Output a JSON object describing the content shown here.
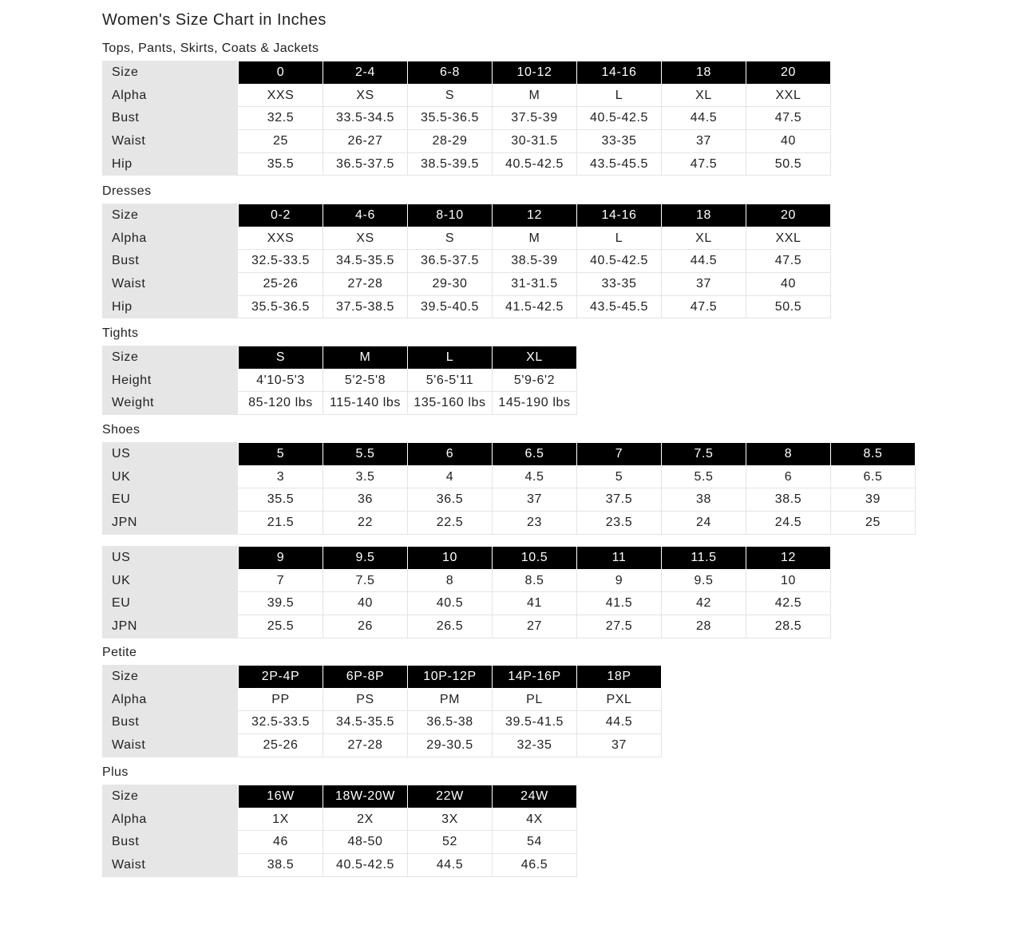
{
  "title": "Women's Size Chart in Inches",
  "sections": [
    {
      "title": "Tops, Pants, Skirts, Coats & Jackets",
      "tables": [
        {
          "rows": [
            {
              "label": "Size",
              "values": [
                "0",
                "2-4",
                "6-8",
                "10-12",
                "14-16",
                "18",
                "20"
              ]
            },
            {
              "label": "Alpha",
              "values": [
                "XXS",
                "XS",
                "S",
                "M",
                "L",
                "XL",
                "XXL"
              ]
            },
            {
              "label": "Bust",
              "values": [
                "32.5",
                "33.5-34.5",
                "35.5-36.5",
                "37.5-39",
                "40.5-42.5",
                "44.5",
                "47.5"
              ]
            },
            {
              "label": "Waist",
              "values": [
                "25",
                "26-27",
                "28-29",
                "30-31.5",
                "33-35",
                "37",
                "40"
              ]
            },
            {
              "label": "Hip",
              "values": [
                "35.5",
                "36.5-37.5",
                "38.5-39.5",
                "40.5-42.5",
                "43.5-45.5",
                "47.5",
                "50.5"
              ]
            }
          ]
        }
      ]
    },
    {
      "title": "Dresses",
      "tables": [
        {
          "rows": [
            {
              "label": "Size",
              "values": [
                "0-2",
                "4-6",
                "8-10",
                "12",
                "14-16",
                "18",
                "20"
              ]
            },
            {
              "label": "Alpha",
              "values": [
                "XXS",
                "XS",
                "S",
                "M",
                "L",
                "XL",
                "XXL"
              ]
            },
            {
              "label": "Bust",
              "values": [
                "32.5-33.5",
                "34.5-35.5",
                "36.5-37.5",
                "38.5-39",
                "40.5-42.5",
                "44.5",
                "47.5"
              ]
            },
            {
              "label": "Waist",
              "values": [
                "25-26",
                "27-28",
                "29-30",
                "31-31.5",
                "33-35",
                "37",
                "40"
              ]
            },
            {
              "label": "Hip",
              "values": [
                "35.5-36.5",
                "37.5-38.5",
                "39.5-40.5",
                "41.5-42.5",
                "43.5-45.5",
                "47.5",
                "50.5"
              ]
            }
          ]
        }
      ]
    },
    {
      "title": "Tights",
      "tables": [
        {
          "rows": [
            {
              "label": "Size",
              "values": [
                "S",
                "M",
                "L",
                "XL"
              ]
            },
            {
              "label": "Height",
              "values": [
                "4'10-5'3",
                "5'2-5'8",
                "5'6-5'11",
                "5'9-6'2"
              ]
            },
            {
              "label": "Weight",
              "values": [
                "85-120 lbs",
                "115-140 lbs",
                "135-160 lbs",
                "145-190 lbs"
              ]
            }
          ]
        }
      ]
    },
    {
      "title": "Shoes",
      "tables": [
        {
          "rows": [
            {
              "label": "US",
              "values": [
                "5",
                "5.5",
                "6",
                "6.5",
                "7",
                "7.5",
                "8",
                "8.5"
              ]
            },
            {
              "label": "UK",
              "values": [
                "3",
                "3.5",
                "4",
                "4.5",
                "5",
                "5.5",
                "6",
                "6.5"
              ]
            },
            {
              "label": "EU",
              "values": [
                "35.5",
                "36",
                "36.5",
                "37",
                "37.5",
                "38",
                "38.5",
                "39"
              ]
            },
            {
              "label": "JPN",
              "values": [
                "21.5",
                "22",
                "22.5",
                "23",
                "23.5",
                "24",
                "24.5",
                "25"
              ]
            }
          ]
        },
        {
          "rows": [
            {
              "label": "US",
              "values": [
                "9",
                "9.5",
                "10",
                "10.5",
                "11",
                "11.5",
                "12"
              ]
            },
            {
              "label": "UK",
              "values": [
                "7",
                "7.5",
                "8",
                "8.5",
                "9",
                "9.5",
                "10"
              ]
            },
            {
              "label": "EU",
              "values": [
                "39.5",
                "40",
                "40.5",
                "41",
                "41.5",
                "42",
                "42.5"
              ]
            },
            {
              "label": "JPN",
              "values": [
                "25.5",
                "26",
                "26.5",
                "27",
                "27.5",
                "28",
                "28.5"
              ]
            }
          ]
        }
      ]
    },
    {
      "title": "Petite",
      "tables": [
        {
          "rows": [
            {
              "label": "Size",
              "values": [
                "2P-4P",
                "6P-8P",
                "10P-12P",
                "14P-16P",
                "18P"
              ]
            },
            {
              "label": "Alpha",
              "values": [
                "PP",
                "PS",
                "PM",
                "PL",
                "PXL"
              ]
            },
            {
              "label": "Bust",
              "values": [
                "32.5-33.5",
                "34.5-35.5",
                "36.5-38",
                "39.5-41.5",
                "44.5"
              ]
            },
            {
              "label": "Waist",
              "values": [
                "25-26",
                "27-28",
                "29-30.5",
                "32-35",
                "37"
              ]
            }
          ]
        }
      ]
    },
    {
      "title": "Plus",
      "tables": [
        {
          "rows": [
            {
              "label": "Size",
              "values": [
                "16W",
                "18W-20W",
                "22W",
                "24W"
              ]
            },
            {
              "label": "Alpha",
              "values": [
                "1X",
                "2X",
                "3X",
                "4X"
              ]
            },
            {
              "label": "Bust",
              "values": [
                "46",
                "48-50",
                "52",
                "54"
              ]
            },
            {
              "label": "Waist",
              "values": [
                "38.5",
                "40.5-42.5",
                "44.5",
                "46.5"
              ]
            }
          ]
        }
      ]
    }
  ]
}
